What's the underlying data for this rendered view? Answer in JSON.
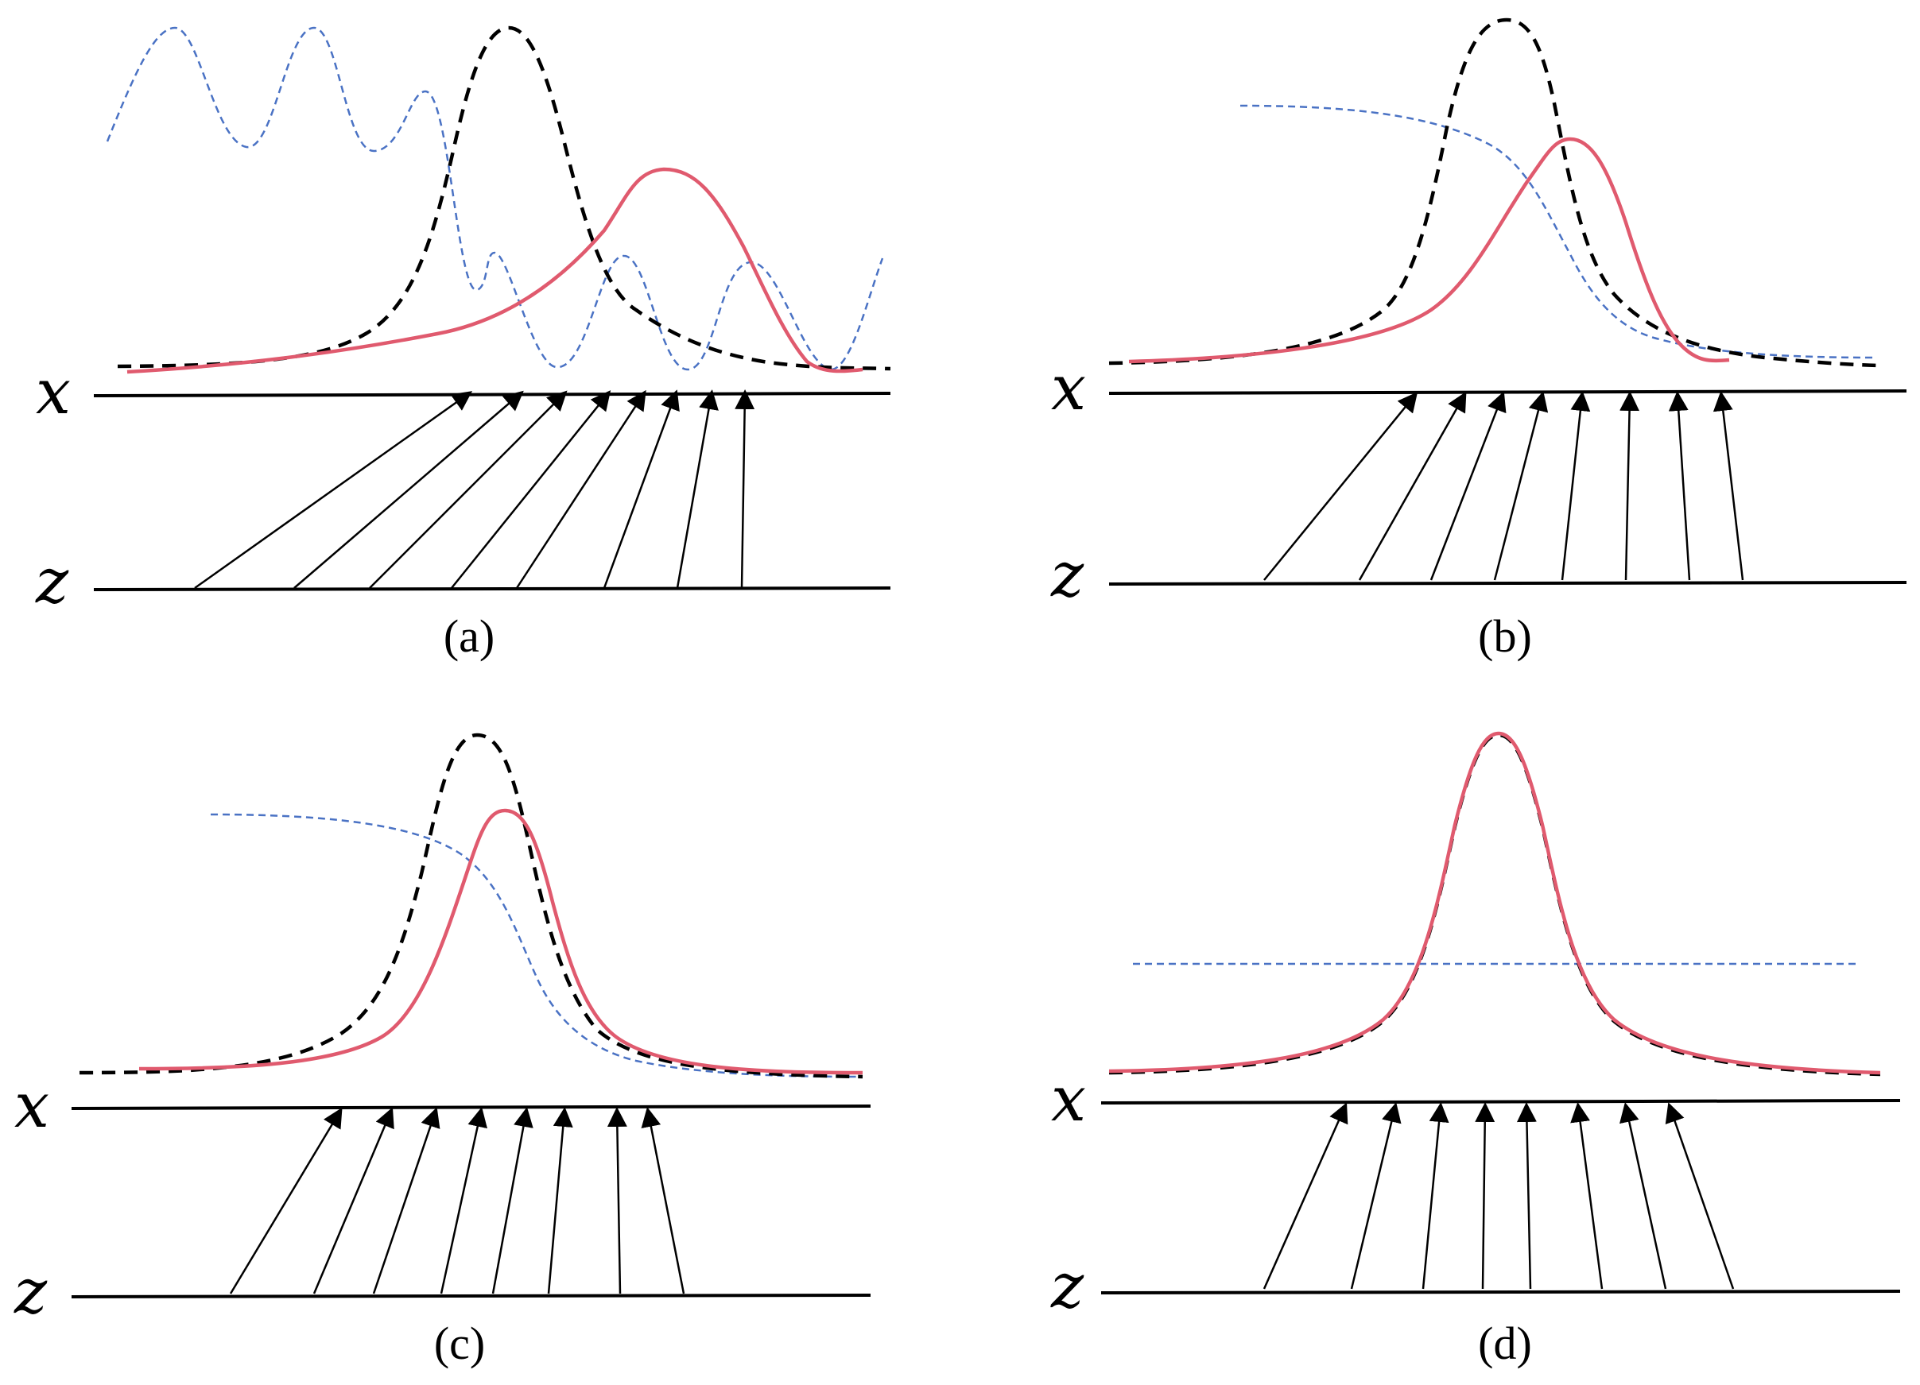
{
  "panels": [
    {
      "caption": "(a)",
      "x_label": "x",
      "z_label": "z"
    },
    {
      "caption": "(b)",
      "x_label": "x",
      "z_label": "z"
    },
    {
      "caption": "(c)",
      "x_label": "x",
      "z_label": "z"
    },
    {
      "caption": "(d)",
      "x_label": "x",
      "z_label": "z"
    }
  ],
  "colors": {
    "target_density": "#000000",
    "model_density": "#e05a6e",
    "discriminator": "#4a72c4",
    "mapping_arrows": "#000000"
  }
}
